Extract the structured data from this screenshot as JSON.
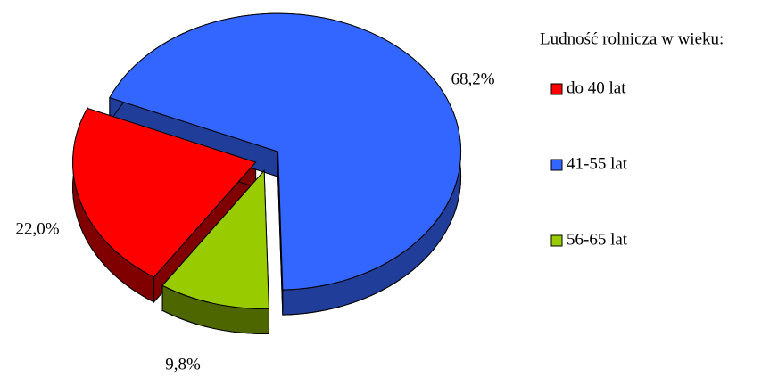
{
  "chart_data": {
    "type": "pie",
    "legend_title": "Ludność rolnicza w wieku:",
    "categories": [
      "do 40 lat",
      "41-55 lat",
      "56-65 lat"
    ],
    "values": [
      22.0,
      68.2,
      9.8
    ],
    "value_labels": [
      "22,0%",
      "68,2%",
      "9,8%"
    ],
    "colors": [
      "#ff0000",
      "#3366ff",
      "#99cc00"
    ],
    "side_colors": [
      "#800000",
      "#1f3d99",
      "#4d6600"
    ],
    "legend": "right"
  }
}
